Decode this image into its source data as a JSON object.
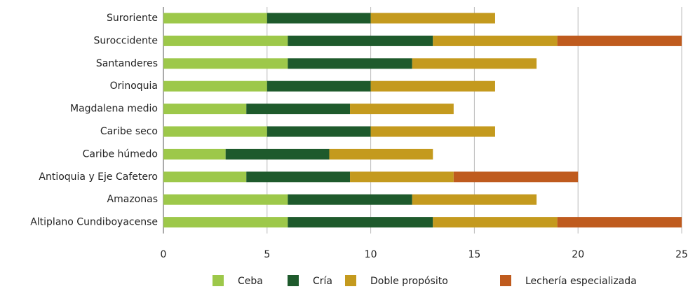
{
  "chart_data": {
    "type": "stacked_bar_horizontal",
    "categories": [
      "Suroriente",
      "Suroccidente",
      "Santanderes",
      "Orinoquia",
      "Magdalena medio",
      "Caribe seco",
      "Caribe húmedo",
      "Antioquia y Eje Cafetero",
      "Amazonas",
      "Altiplano Cundiboyacense"
    ],
    "series": [
      {
        "name": "Ceba",
        "color": "#9dc84a",
        "values": [
          5,
          6,
          6,
          5,
          4,
          5,
          3,
          4,
          6,
          6
        ]
      },
      {
        "name": "Cría",
        "color": "#1e5a2c",
        "values": [
          5,
          7,
          6,
          5,
          5,
          5,
          5,
          5,
          6,
          7
        ]
      },
      {
        "name": "Doble propósito",
        "color": "#c49a1e",
        "values": [
          6,
          6,
          6,
          6,
          5,
          6,
          5,
          5,
          6,
          6
        ]
      },
      {
        "name": "Lechería especializada",
        "color": "#bf5b1e",
        "values": [
          0,
          6,
          0,
          0,
          0,
          0,
          0,
          6,
          0,
          6
        ]
      }
    ],
    "xlim": [
      0,
      25
    ],
    "xticks": [
      0,
      5,
      10,
      15,
      20,
      25
    ],
    "grid": true,
    "legend": "bottom"
  }
}
